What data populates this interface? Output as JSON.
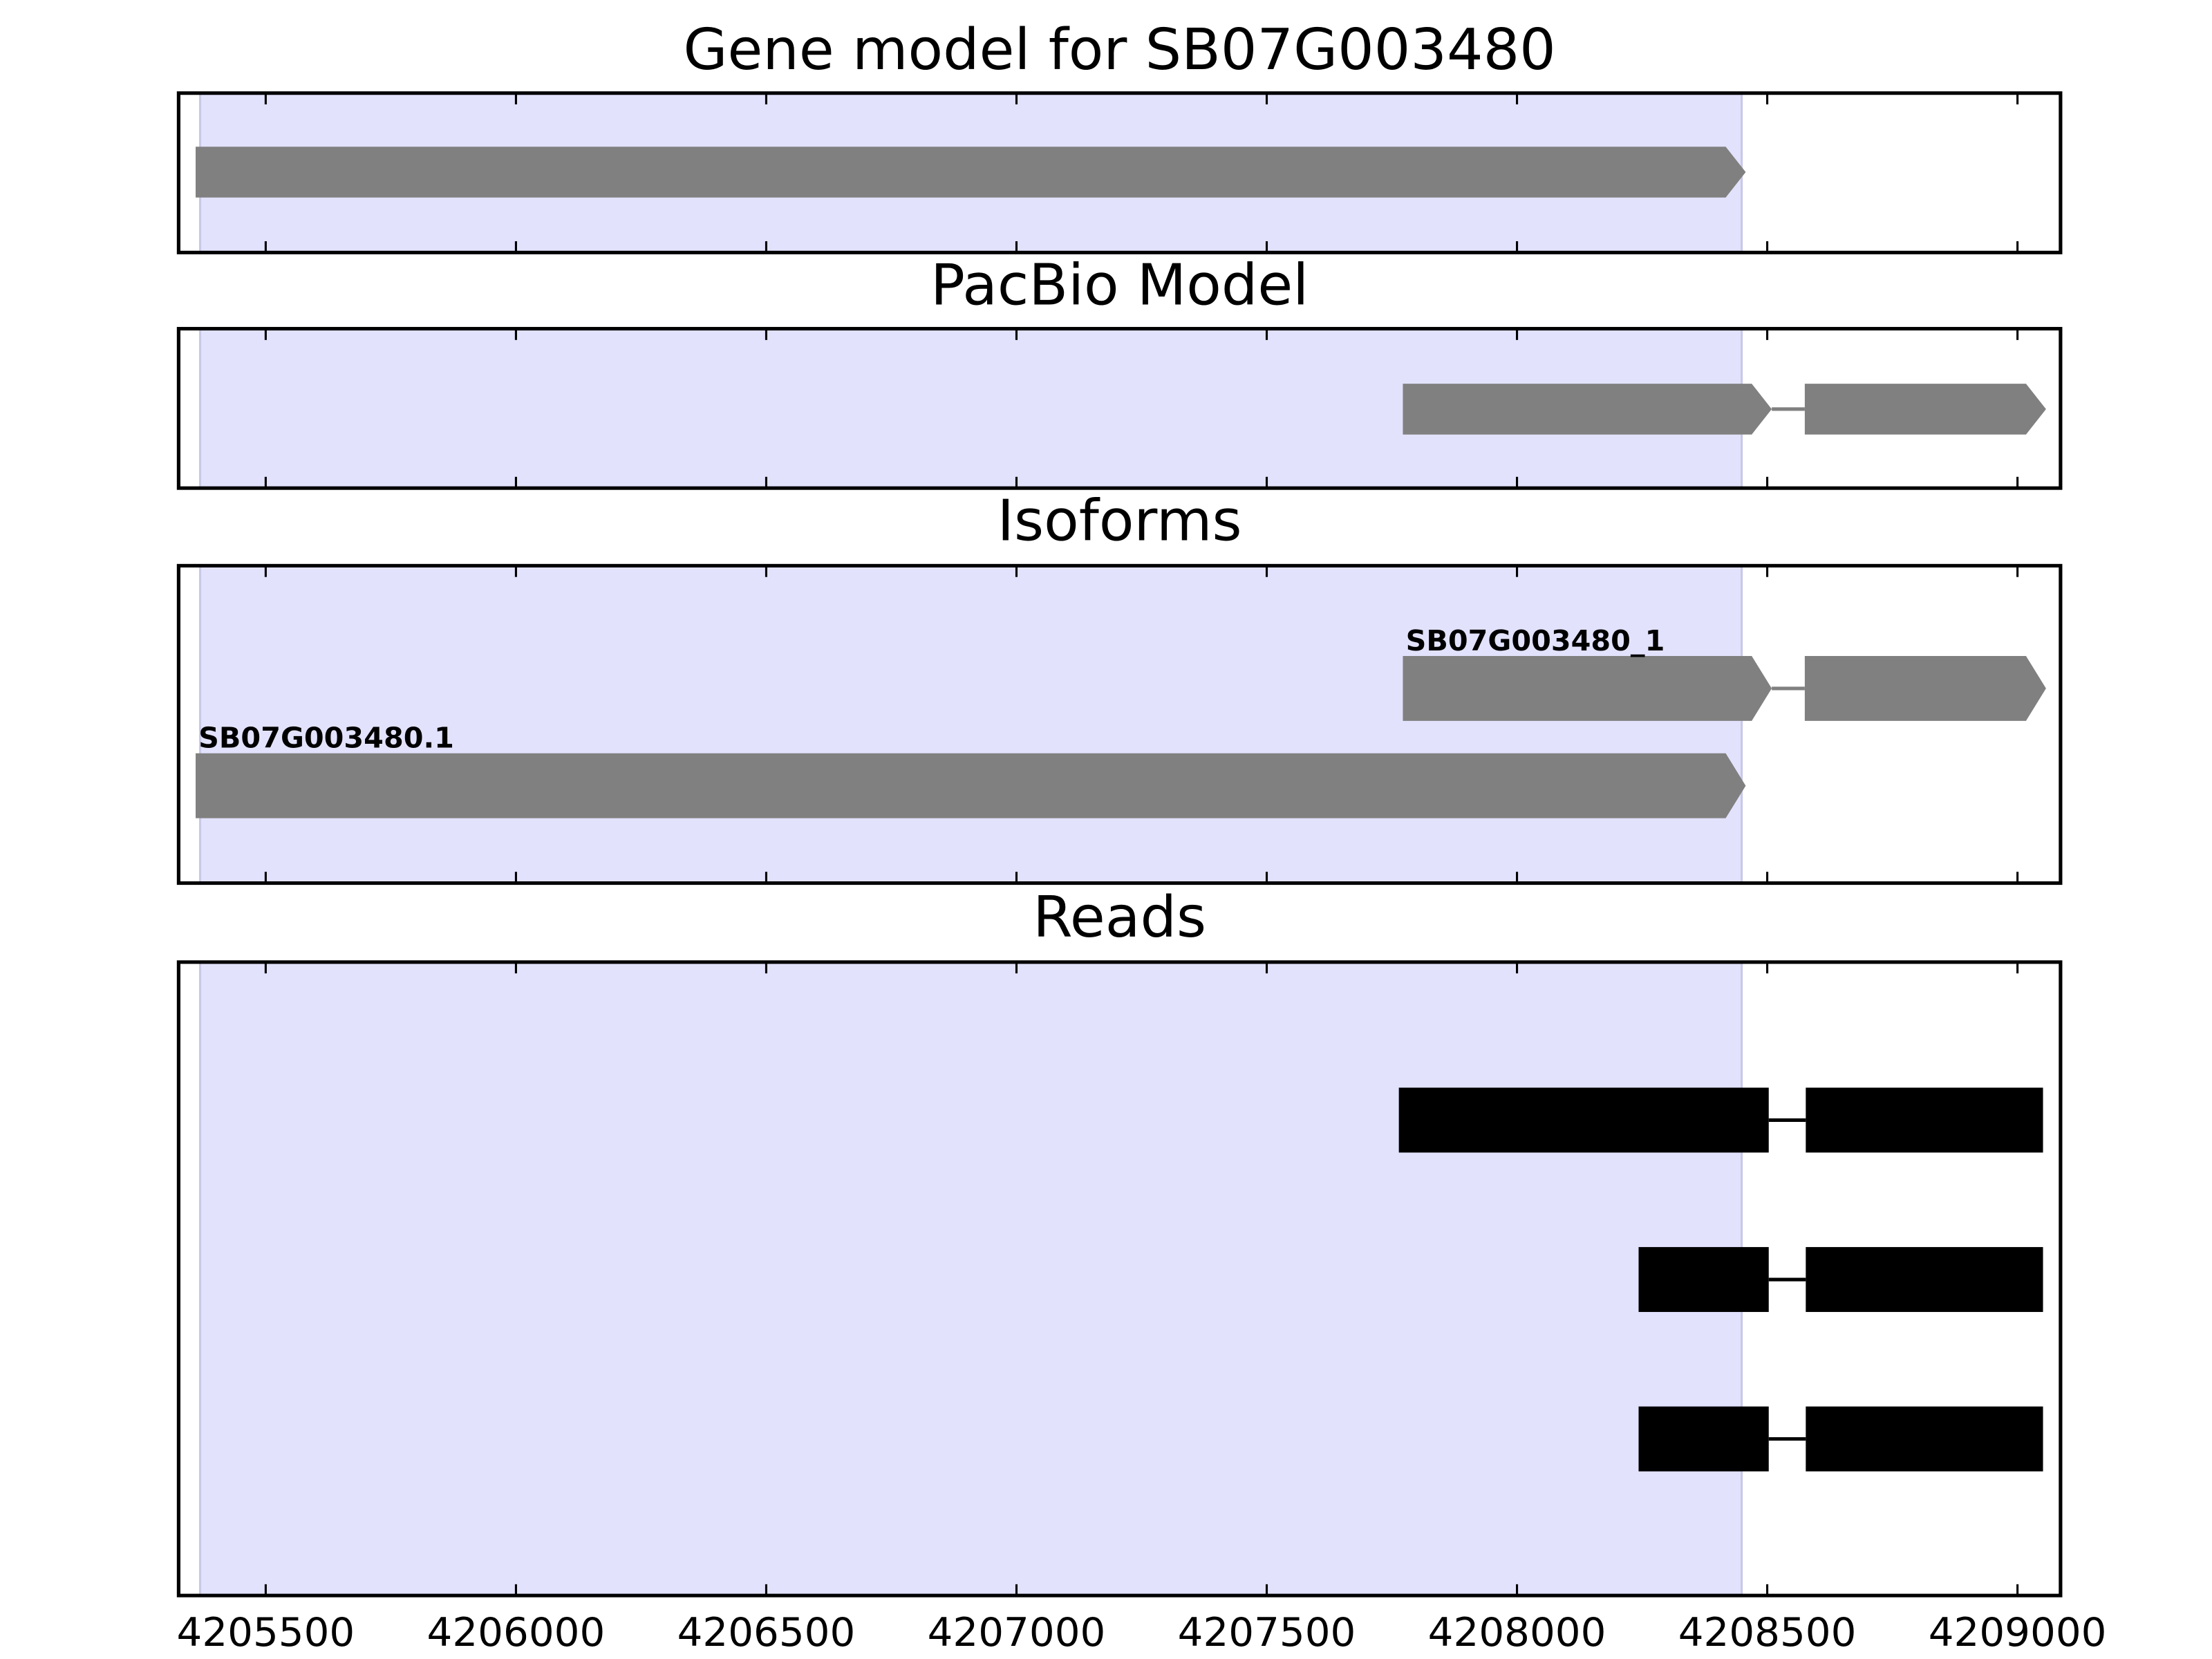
{
  "chart_data": [
    {
      "type": "gene-track",
      "title": "Gene model for SB07G003480",
      "style": "arrow",
      "color": "#808080",
      "xlim": [
        4205326,
        4209086
      ],
      "xticks": [
        4205500,
        4206000,
        4206500,
        4207000,
        4207500,
        4208000,
        4208500,
        4209000
      ],
      "highlight": [
        4205369,
        4208449
      ],
      "highlight_color": "#e2e2fd",
      "features": [
        {
          "exons": [
            [
              4205360,
              4208457
            ]
          ]
        }
      ]
    },
    {
      "type": "gene-track",
      "title": "PacBio Model",
      "style": "arrow",
      "color": "#808080",
      "xlim": [
        4205326,
        4209086
      ],
      "xticks": [
        4205500,
        4206000,
        4206500,
        4207000,
        4207500,
        4208000,
        4208500,
        4209000
      ],
      "highlight": [
        4205369,
        4208449
      ],
      "highlight_color": "#e2e2fd",
      "features": [
        {
          "exons": [
            [
              4207772,
              4208509
            ],
            [
              4208575,
              4209057
            ]
          ]
        }
      ]
    },
    {
      "type": "gene-track",
      "title": "Isoforms",
      "style": "arrow",
      "color": "#808080",
      "xlim": [
        4205326,
        4209086
      ],
      "xticks": [
        4205500,
        4206000,
        4206500,
        4207000,
        4207500,
        4208000,
        4208500,
        4209000
      ],
      "highlight": [
        4205369,
        4208449
      ],
      "highlight_color": "#e2e2fd",
      "features": [
        {
          "name": "SB07G003480_1",
          "exons": [
            [
              4207772,
              4208509
            ],
            [
              4208575,
              4209057
            ]
          ]
        },
        {
          "name": "SB07G003480.1",
          "exons": [
            [
              4205360,
              4208457
            ]
          ]
        }
      ]
    },
    {
      "type": "gene-track",
      "title": "Reads",
      "style": "block",
      "color": "#000000",
      "xlim": [
        4205326,
        4209086
      ],
      "xticks": [
        4205500,
        4206000,
        4206500,
        4207000,
        4207500,
        4208000,
        4208500,
        4209000
      ],
      "highlight": [
        4205369,
        4208449
      ],
      "highlight_color": "#e2e2fd",
      "tick_labels": true,
      "features": [
        {
          "exons": [
            [
              4207764,
              4208503
            ],
            [
              4208577,
              4209051
            ]
          ]
        },
        {
          "exons": [
            [
              4208243,
              4208503
            ],
            [
              4208577,
              4209051
            ]
          ]
        },
        {
          "exons": [
            [
              4208243,
              4208503
            ],
            [
              4208577,
              4209051
            ]
          ]
        }
      ]
    }
  ]
}
